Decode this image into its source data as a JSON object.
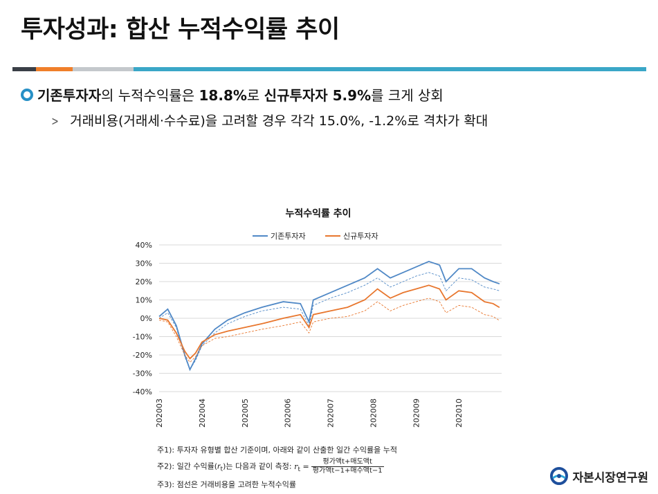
{
  "title": "투자성과: 합산 누적수익률 추이",
  "bullets": {
    "main_prefix": "기존투자자",
    "main_mid1": "의 누적수익률은 ",
    "main_value1": "18.8%",
    "main_mid2": "로 ",
    "main_prefix2": "신규투자자 5.9%",
    "main_suffix": "를 크게 상회",
    "sub": "거래비용(거래세·수수료)을 고려할 경우 각각 15.0%, -1.2%로 격차가 확대"
  },
  "notes": {
    "n1": "주1): 투자자 유형별 합산 기준이며, 아래와 같이 산출한 일간 수익률을 누적",
    "n2_prefix": "주2): 일간 수익률(",
    "n2_sym": "r",
    "n2_sub": "t",
    "n2_mid": ")는 다음과 같이 측정: ",
    "n2_lhs": "r",
    "n2_lhs_sub": "t",
    "n2_eq": " = ",
    "n2_num": "평가액t+매도액t",
    "n2_den": "평가액t−1+매수액t−1",
    "n3": "주3): 점선은 거래비용을 고려한 누적수익률"
  },
  "logo_text": "자본시장연구원",
  "colors": {
    "blue": "#4f88c6",
    "orange": "#e8762d",
    "accent_ring": "#2790c6"
  },
  "chart_data": {
    "type": "line",
    "title": "누적수익률 추이",
    "ylim": [
      -40,
      40
    ],
    "yticks": [
      "40%",
      "30%",
      "20%",
      "10%",
      "0%",
      "-10%",
      "-20%",
      "-30%",
      "-40%"
    ],
    "ytick_values": [
      40,
      30,
      20,
      10,
      0,
      -10,
      -20,
      -30,
      -40
    ],
    "xticks": [
      "202003",
      "202004",
      "202005",
      "202006",
      "202007",
      "202008",
      "202009",
      "202010"
    ],
    "x_start_month": "202003",
    "x_end_month": "202010",
    "legend": [
      "기존투자자",
      "신규투자자"
    ],
    "legend_position": "top",
    "grid": "horizontal",
    "series": [
      {
        "name": "기존투자자",
        "color": "#4f88c6",
        "style": "solid",
        "points": [
          [
            0,
            1
          ],
          [
            0.2,
            5
          ],
          [
            0.4,
            -4
          ],
          [
            0.6,
            -20
          ],
          [
            0.72,
            -28
          ],
          [
            0.85,
            -22
          ],
          [
            1.0,
            -14
          ],
          [
            1.3,
            -6
          ],
          [
            1.6,
            -1
          ],
          [
            2.0,
            3
          ],
          [
            2.4,
            6
          ],
          [
            2.9,
            9
          ],
          [
            3.3,
            8
          ],
          [
            3.5,
            -2
          ],
          [
            3.6,
            10
          ],
          [
            4.0,
            14
          ],
          [
            4.4,
            18
          ],
          [
            4.8,
            22
          ],
          [
            5.1,
            27
          ],
          [
            5.4,
            22
          ],
          [
            5.7,
            25
          ],
          [
            6.0,
            28
          ],
          [
            6.3,
            31
          ],
          [
            6.55,
            29
          ],
          [
            6.7,
            20
          ],
          [
            7.0,
            27
          ],
          [
            7.3,
            27
          ],
          [
            7.6,
            22
          ],
          [
            7.8,
            20
          ],
          [
            7.95,
            18.8
          ]
        ]
      },
      {
        "name": "기존투자자 (거래비용 고려)",
        "color": "#4f88c6",
        "style": "dashed",
        "points": [
          [
            0,
            0
          ],
          [
            0.2,
            3
          ],
          [
            0.4,
            -5
          ],
          [
            0.6,
            -21
          ],
          [
            0.72,
            -28
          ],
          [
            0.85,
            -23
          ],
          [
            1.0,
            -15
          ],
          [
            1.3,
            -8
          ],
          [
            1.6,
            -3
          ],
          [
            2.0,
            1
          ],
          [
            2.4,
            4
          ],
          [
            2.9,
            6
          ],
          [
            3.3,
            5
          ],
          [
            3.5,
            -4
          ],
          [
            3.6,
            7
          ],
          [
            4.0,
            11
          ],
          [
            4.4,
            14
          ],
          [
            4.8,
            18
          ],
          [
            5.1,
            22
          ],
          [
            5.4,
            17
          ],
          [
            5.7,
            20
          ],
          [
            6.0,
            23
          ],
          [
            6.3,
            25
          ],
          [
            6.55,
            23
          ],
          [
            6.7,
            15
          ],
          [
            7.0,
            22
          ],
          [
            7.3,
            21
          ],
          [
            7.6,
            17
          ],
          [
            7.8,
            16
          ],
          [
            7.95,
            15.0
          ]
        ]
      },
      {
        "name": "신규투자자",
        "color": "#e8762d",
        "style": "solid",
        "points": [
          [
            0,
            0
          ],
          [
            0.2,
            -1
          ],
          [
            0.4,
            -8
          ],
          [
            0.6,
            -18
          ],
          [
            0.72,
            -22
          ],
          [
            0.85,
            -19
          ],
          [
            1.0,
            -13
          ],
          [
            1.3,
            -9
          ],
          [
            1.6,
            -7
          ],
          [
            2.0,
            -5
          ],
          [
            2.4,
            -3
          ],
          [
            2.9,
            0
          ],
          [
            3.3,
            2
          ],
          [
            3.5,
            -5
          ],
          [
            3.6,
            2
          ],
          [
            4.0,
            4
          ],
          [
            4.4,
            6
          ],
          [
            4.8,
            10
          ],
          [
            5.1,
            16
          ],
          [
            5.4,
            11
          ],
          [
            5.7,
            14
          ],
          [
            6.0,
            16
          ],
          [
            6.3,
            18
          ],
          [
            6.55,
            16
          ],
          [
            6.7,
            10
          ],
          [
            7.0,
            15
          ],
          [
            7.3,
            14
          ],
          [
            7.6,
            9
          ],
          [
            7.8,
            8
          ],
          [
            7.95,
            5.9
          ]
        ]
      },
      {
        "name": "신규투자자 (거래비용 고려)",
        "color": "#e8762d",
        "style": "dashed",
        "points": [
          [
            0,
            -1
          ],
          [
            0.2,
            -2
          ],
          [
            0.4,
            -10
          ],
          [
            0.6,
            -20
          ],
          [
            0.72,
            -24
          ],
          [
            0.85,
            -21
          ],
          [
            1.0,
            -15
          ],
          [
            1.3,
            -11
          ],
          [
            1.6,
            -10
          ],
          [
            2.0,
            -8
          ],
          [
            2.4,
            -6
          ],
          [
            2.9,
            -4
          ],
          [
            3.3,
            -2
          ],
          [
            3.5,
            -8
          ],
          [
            3.6,
            -2
          ],
          [
            4.0,
            0
          ],
          [
            4.4,
            1
          ],
          [
            4.8,
            4
          ],
          [
            5.1,
            9
          ],
          [
            5.4,
            4
          ],
          [
            5.7,
            7
          ],
          [
            6.0,
            9
          ],
          [
            6.3,
            11
          ],
          [
            6.55,
            9
          ],
          [
            6.7,
            3
          ],
          [
            7.0,
            7
          ],
          [
            7.3,
            6
          ],
          [
            7.6,
            2
          ],
          [
            7.8,
            1
          ],
          [
            7.95,
            -1.2
          ]
        ]
      }
    ]
  }
}
